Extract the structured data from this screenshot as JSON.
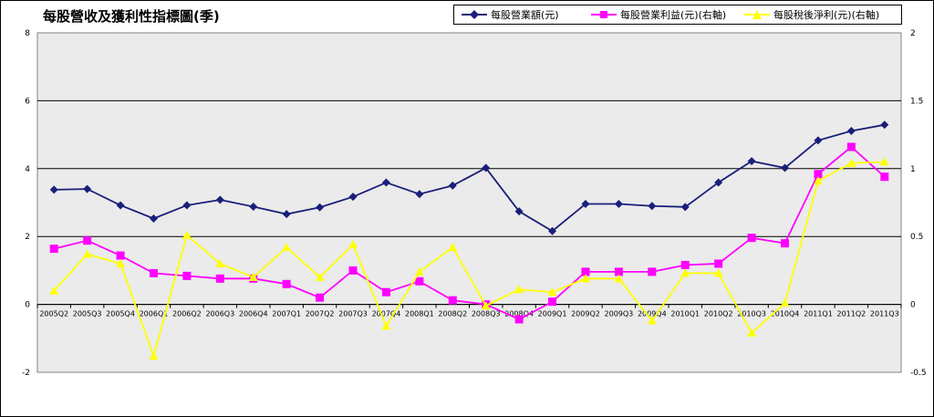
{
  "chart_data": {
    "type": "line",
    "title": "每股營收及獲利性指標圖(季)",
    "categories": [
      "2005Q2",
      "2005Q3",
      "2005Q4",
      "2006Q1",
      "2006Q2",
      "2006Q3",
      "2006Q4",
      "2007Q1",
      "2007Q2",
      "2007Q3",
      "2007Q4",
      "2008Q1",
      "2008Q2",
      "2008Q3",
      "2008Q4",
      "2009Q1",
      "2009Q2",
      "2009Q3",
      "2009Q4",
      "2010Q1",
      "2010Q2",
      "2010Q3",
      "2010Q4",
      "2011Q1",
      "2011Q2",
      "2011Q3"
    ],
    "left_axis": {
      "ylim": [
        -2,
        8
      ],
      "ticks": [
        "-2",
        "0",
        "2",
        "4",
        "6",
        "8"
      ]
    },
    "right_axis": {
      "ylim": [
        -0.5,
        2
      ],
      "ticks": [
        "-0.5",
        "0",
        "0.5",
        "1",
        "1.5",
        "2"
      ]
    },
    "grid": true,
    "legend_position": "top-right",
    "series": [
      {
        "name": "每股營業額(元)",
        "axis": "left",
        "color": "#1a1f7a",
        "marker": "diamond",
        "values": [
          3.38,
          3.4,
          2.92,
          2.53,
          2.92,
          3.08,
          2.88,
          2.66,
          2.86,
          3.17,
          3.59,
          3.25,
          3.5,
          4.02,
          2.74,
          2.16,
          2.96,
          2.96,
          2.9,
          2.87,
          3.59,
          4.22,
          4.02,
          4.83,
          5.11,
          5.29
        ]
      },
      {
        "name": "每股營業利益(元)(右軸)",
        "axis": "right",
        "color": "#ff00ff",
        "marker": "square",
        "values": [
          0.41,
          0.47,
          0.36,
          0.23,
          0.21,
          0.19,
          0.19,
          0.15,
          0.05,
          0.25,
          0.09,
          0.17,
          0.03,
          0.0,
          -0.11,
          0.02,
          0.24,
          0.24,
          0.24,
          0.29,
          0.3,
          0.49,
          0.45,
          0.96,
          1.16,
          0.94
        ]
      },
      {
        "name": "每股稅後淨利(元)(右軸)",
        "axis": "right",
        "color": "#ffff00",
        "marker": "triangle",
        "values": [
          0.1,
          0.37,
          0.3,
          -0.38,
          0.51,
          0.3,
          0.2,
          0.42,
          0.2,
          0.44,
          -0.16,
          0.24,
          0.42,
          -0.01,
          0.11,
          0.09,
          0.19,
          0.19,
          -0.12,
          0.23,
          0.23,
          -0.21,
          0.01,
          0.91,
          1.04,
          1.05
        ]
      }
    ]
  }
}
